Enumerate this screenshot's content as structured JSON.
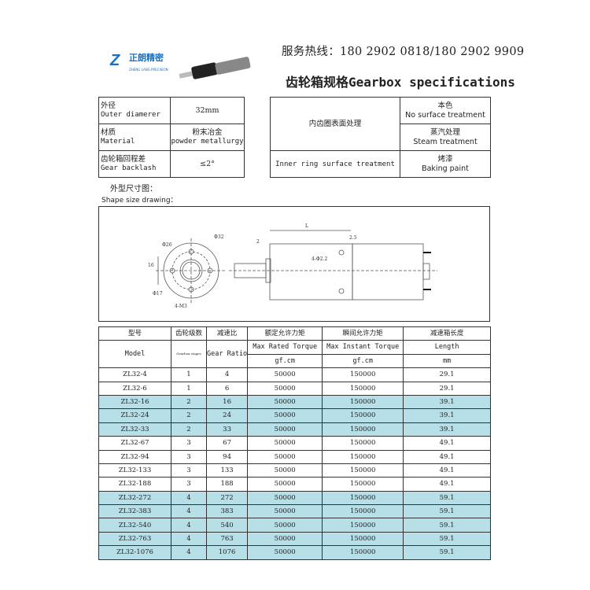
{
  "logo": {
    "text_cn": "正朗精密",
    "text_en": "ZHENG LANG PRECISION"
  },
  "hotline": "服务热线：180 2902 0818/180 2902 9909",
  "title": "齿轮箱规格Gearbox specifications",
  "specs": [
    {
      "label_cn": "外径",
      "label_en": "Outer diamerer",
      "value": "32mm"
    },
    {
      "label_cn": "材质",
      "label_en": "Material",
      "value_cn": "粉末冶金",
      "value_en": "powder metallurgy"
    },
    {
      "label_cn": "齿轮箱回程差",
      "label_en": "Gear backlash",
      "value": "≤2°"
    }
  ],
  "treatment": {
    "label_cn": "内齿圈表面处理",
    "label_en": "Inner ring surface treatment",
    "options": [
      {
        "cn": "本色",
        "en": "No surface treatment"
      },
      {
        "cn": "蒸汽处理",
        "en": "Steam treatment"
      },
      {
        "cn": "烤漆",
        "en": "Baking paint"
      }
    ]
  },
  "drawing": {
    "label_cn": "外型尺寸图：",
    "label_en": "Shape size drawing：",
    "dims": {
      "d32": "Φ32",
      "d26": "Φ26",
      "d17": "Φ17",
      "h16": "16",
      "holes": "4-M3",
      "L": "L",
      "two": "2",
      "two5": "2.5",
      "screw": "4-Φ2.2"
    }
  },
  "table": {
    "headers_cn": [
      "型号",
      "齿轮级数",
      "减速比",
      "额定允许力矩",
      "瞬间允许力矩",
      "减速箱长度"
    ],
    "headers_en": [
      "Model",
      "Gearbox stages",
      "Gear Ratio",
      "Max Rated Torque",
      "Max Instant Torque",
      "Length"
    ],
    "units": [
      "gf.cm",
      "gf.cm",
      "mm"
    ],
    "highlight_color": "#b7dfe8",
    "rows": [
      {
        "model": "ZL32-4",
        "stages": "1",
        "ratio": "4",
        "rated": "50000",
        "instant": "150000",
        "length": "29.1",
        "hl": false
      },
      {
        "model": "ZL32-6",
        "stages": "1",
        "ratio": "6",
        "rated": "50000",
        "instant": "150000",
        "length": "29.1",
        "hl": false
      },
      {
        "model": "ZL32-16",
        "stages": "2",
        "ratio": "16",
        "rated": "50000",
        "instant": "150000",
        "length": "39.1",
        "hl": true
      },
      {
        "model": "ZL32-24",
        "stages": "2",
        "ratio": "24",
        "rated": "50000",
        "instant": "150000",
        "length": "39.1",
        "hl": true
      },
      {
        "model": "ZL32-33",
        "stages": "2",
        "ratio": "33",
        "rated": "50000",
        "instant": "150000",
        "length": "39.1",
        "hl": true
      },
      {
        "model": "ZL32-67",
        "stages": "3",
        "ratio": "67",
        "rated": "50000",
        "instant": "150000",
        "length": "49.1",
        "hl": false
      },
      {
        "model": "ZL32-94",
        "stages": "3",
        "ratio": "94",
        "rated": "50000",
        "instant": "150000",
        "length": "49.1",
        "hl": false
      },
      {
        "model": "ZL32-133",
        "stages": "3",
        "ratio": "133",
        "rated": "50000",
        "instant": "150000",
        "length": "49.1",
        "hl": false
      },
      {
        "model": "ZL32-188",
        "stages": "3",
        "ratio": "188",
        "rated": "50000",
        "instant": "150000",
        "length": "49.1",
        "hl": false
      },
      {
        "model": "ZL32-272",
        "stages": "4",
        "ratio": "272",
        "rated": "50000",
        "instant": "150000",
        "length": "59.1",
        "hl": true
      },
      {
        "model": "ZL32-383",
        "stages": "4",
        "ratio": "383",
        "rated": "50000",
        "instant": "150000",
        "length": "59.1",
        "hl": true
      },
      {
        "model": "ZL32-540",
        "stages": "4",
        "ratio": "540",
        "rated": "50000",
        "instant": "150000",
        "length": "59.1",
        "hl": true
      },
      {
        "model": "ZL32-763",
        "stages": "4",
        "ratio": "763",
        "rated": "50000",
        "instant": "150000",
        "length": "59.1",
        "hl": true
      },
      {
        "model": "ZL32-1076",
        "stages": "4",
        "ratio": "1076",
        "rated": "50000",
        "instant": "150000",
        "length": "59.1",
        "hl": true
      }
    ]
  }
}
